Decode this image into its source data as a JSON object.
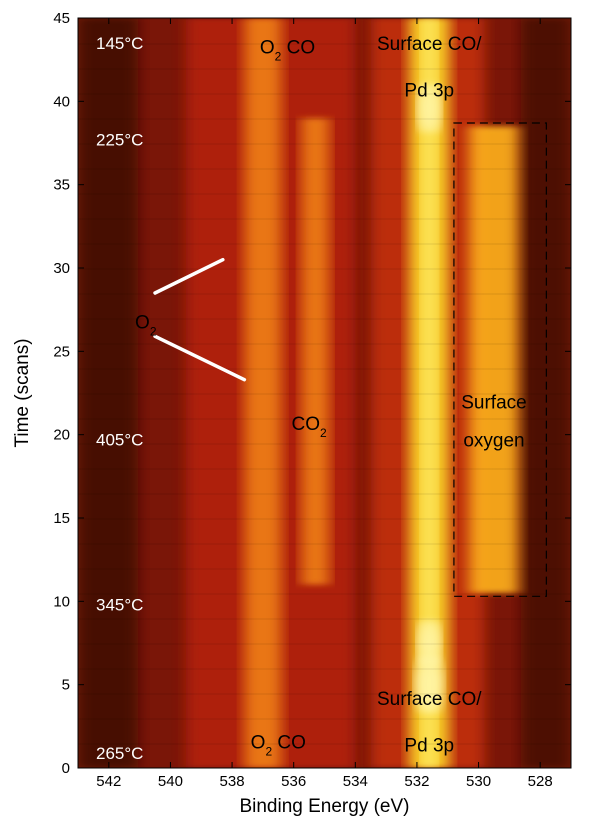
{
  "chart_data": {
    "type": "heatmap",
    "title": "",
    "xlabel": "Binding Energy (eV)",
    "ylabel": "Time (scans)",
    "xlim": [
      543,
      527
    ],
    "ylim": [
      0,
      45
    ],
    "x_reversed": true,
    "x_ticks": [
      542,
      540,
      538,
      536,
      534,
      532,
      530,
      528
    ],
    "y_ticks": [
      0,
      5,
      10,
      15,
      20,
      25,
      30,
      35,
      40,
      45
    ],
    "colormap": "hot",
    "bands": [
      {
        "center": 537.0,
        "width": 1.2,
        "y_range": [
          0,
          45
        ],
        "intensity": 0.55
      },
      {
        "center": 535.3,
        "width": 0.9,
        "y_range": [
          11,
          39
        ],
        "intensity": 0.6
      },
      {
        "center": 531.6,
        "width": 1.3,
        "y_range": [
          0,
          45
        ],
        "intensity": 0.95
      },
      {
        "center": 529.5,
        "width": 1.6,
        "y_range": [
          10.5,
          38.5
        ],
        "intensity": 0.7
      }
    ],
    "temperatures": [
      {
        "label": "145°C",
        "y": 43.5
      },
      {
        "label": "225°C",
        "y": 37.7
      },
      {
        "label": "405°C",
        "y": 19.7
      },
      {
        "label": "345°C",
        "y": 9.8
      },
      {
        "label": "265°C",
        "y": 0.9
      }
    ],
    "annotations": [
      {
        "text": "O",
        "sub": "2",
        "suffix": " CO",
        "x": 536.2,
        "y": 43.3
      },
      {
        "text": "Surface CO/",
        "x": 531.6,
        "y": 43.5
      },
      {
        "text": "Pd 3p",
        "x": 531.6,
        "y": 40.7
      },
      {
        "text": "O",
        "sub": "2",
        "suffix": "",
        "x": 540.8,
        "y": 26.8
      },
      {
        "text": "CO",
        "sub": "2",
        "suffix": "",
        "x": 535.5,
        "y": 20.7
      },
      {
        "text": "Surface",
        "x": 529.5,
        "y": 22.0
      },
      {
        "text": "oxygen",
        "x": 529.5,
        "y": 19.7
      },
      {
        "text": "O",
        "sub": "2",
        "suffix": " CO",
        "x": 536.5,
        "y": 1.6
      },
      {
        "text": "Surface CO/",
        "x": 531.6,
        "y": 4.2
      },
      {
        "text": "Pd 3p",
        "x": 531.6,
        "y": 1.4
      }
    ],
    "pointer_lines": [
      {
        "from": [
          540.5,
          28.5
        ],
        "to": [
          538.3,
          30.5
        ]
      },
      {
        "from": [
          540.5,
          25.9
        ],
        "to": [
          537.6,
          23.3
        ]
      }
    ],
    "dashed_box": {
      "x_range": [
        530.8,
        527.8
      ],
      "y_range": [
        10.3,
        38.7
      ]
    }
  }
}
